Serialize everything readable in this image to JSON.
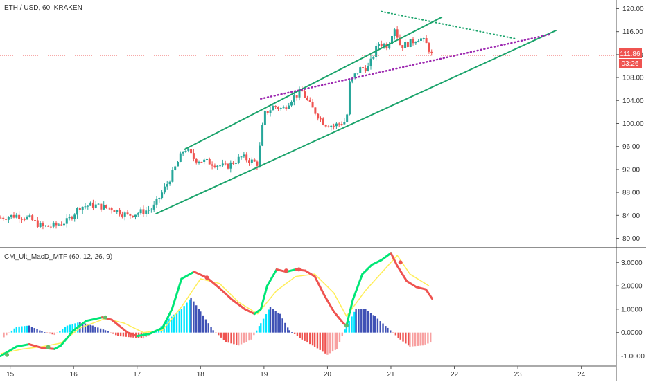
{
  "header": {
    "symbol": "ETH / USD, 60, KRAKEN",
    "indicator": "CM_Ult_MacD_MTF (60, 12, 26, 9)"
  },
  "price_tag": {
    "value": "111.86",
    "countdown": "03:26"
  },
  "colors": {
    "up": "#26a69a",
    "down": "#ef5350",
    "channel": "#1aa36b",
    "support_dotted": "#9c27b0",
    "resistance_dotted": "#1aa36b",
    "macd_up": "#00e676",
    "macd_down": "#ef5350",
    "signal": "#ffee58",
    "hist_pos_strong": "#00e5ff",
    "hist_pos_weak": "#3f51b5",
    "hist_neg_strong": "#ef5350",
    "hist_neg_weak": "#f8a0a0",
    "price_line": "#ef5350",
    "axis": "#555555"
  },
  "chart_data": [
    {
      "type": "candlestick",
      "title": "ETH / USD, 60, KRAKEN",
      "x_ticks": [
        "15",
        "16",
        "17",
        "18",
        "19",
        "20",
        "21",
        "22",
        "23",
        "24"
      ],
      "y_ticks": [
        "80.00",
        "84.00",
        "88.00",
        "92.00",
        "96.00",
        "100.00",
        "104.00",
        "108.00",
        "112.00",
        "116.00",
        "120.00"
      ],
      "ylim": [
        78.5,
        121.5
      ],
      "xlim": [
        14.84,
        24.55
      ],
      "last_price": 111.86,
      "close_path": [
        [
          14.85,
          83.6
        ],
        [
          15.1,
          84.0
        ],
        [
          15.3,
          83.5
        ],
        [
          15.5,
          82.0
        ],
        [
          15.7,
          82.2
        ],
        [
          15.9,
          83.0
        ],
        [
          16.1,
          85.5
        ],
        [
          16.3,
          85.8
        ],
        [
          16.6,
          85.2
        ],
        [
          16.85,
          84.0
        ],
        [
          17.0,
          84.4
        ],
        [
          17.25,
          85.2
        ],
        [
          17.5,
          90.0
        ],
        [
          17.75,
          95.8
        ],
        [
          17.9,
          93.8
        ],
        [
          18.15,
          93.2
        ],
        [
          18.4,
          92.4
        ],
        [
          18.65,
          94.2
        ],
        [
          18.9,
          93.0
        ],
        [
          19.0,
          101.5
        ],
        [
          19.15,
          103.0
        ],
        [
          19.3,
          102.5
        ],
        [
          19.45,
          104.5
        ],
        [
          19.6,
          105.5
        ],
        [
          19.75,
          102.8
        ],
        [
          19.95,
          100.0
        ],
        [
          20.1,
          99.6
        ],
        [
          20.3,
          100.5
        ],
        [
          20.35,
          107.0
        ],
        [
          20.5,
          109.5
        ],
        [
          20.65,
          109.8
        ],
        [
          20.8,
          114.0
        ],
        [
          20.95,
          113.5
        ],
        [
          21.05,
          117.0
        ],
        [
          21.15,
          113.5
        ],
        [
          21.3,
          114.0
        ],
        [
          21.45,
          115.0
        ],
        [
          21.55,
          114.0
        ],
        [
          21.65,
          111.86
        ]
      ],
      "annotations": {
        "channel_upper": [
          [
            17.75,
            95.5
          ],
          [
            21.8,
            118.5
          ]
        ],
        "channel_lower": [
          [
            17.3,
            84.3
          ],
          [
            23.6,
            116.2
          ]
        ],
        "support_dotted": [
          [
            18.95,
            104.3
          ],
          [
            23.5,
            115.5
          ]
        ],
        "resistance_dotted": [
          [
            20.85,
            119.5
          ],
          [
            22.95,
            114.8
          ]
        ]
      }
    },
    {
      "type": "line+bar",
      "title": "CM_Ult_MacD_MTF (60, 12, 26, 9)",
      "y_ticks": [
        "-1.0000",
        "0.0000",
        "1.0000",
        "2.0000",
        "3.0000"
      ],
      "ylim": [
        -1.4,
        3.6
      ],
      "xlim": [
        14.84,
        24.55
      ],
      "series": [
        {
          "name": "MACD",
          "x": [
            14.85,
            15.1,
            15.3,
            15.5,
            15.7,
            15.8,
            16.0,
            16.2,
            16.45,
            16.6,
            16.85,
            17.0,
            17.2,
            17.4,
            17.55,
            17.7,
            17.9,
            18.1,
            18.3,
            18.5,
            18.7,
            18.85,
            18.95,
            19.05,
            19.2,
            19.35,
            19.5,
            19.65,
            19.8,
            19.95,
            20.1,
            20.25,
            20.3,
            20.4,
            20.55,
            20.7,
            20.85,
            21.0,
            21.1,
            21.25,
            21.4,
            21.55,
            21.65
          ],
          "y": [
            -1.0,
            -0.6,
            -0.5,
            -0.65,
            -0.7,
            -0.55,
            0.1,
            0.5,
            0.65,
            0.55,
            0.0,
            -0.15,
            -0.05,
            0.2,
            1.0,
            2.3,
            2.6,
            2.35,
            1.9,
            1.4,
            1.0,
            0.8,
            1.0,
            2.0,
            2.7,
            2.6,
            2.7,
            2.65,
            2.4,
            1.6,
            0.9,
            0.4,
            0.3,
            1.4,
            2.5,
            2.9,
            3.1,
            3.4,
            2.85,
            2.2,
            1.95,
            1.85,
            1.45
          ]
        },
        {
          "name": "Signal",
          "x": [
            14.85,
            15.2,
            15.5,
            15.8,
            16.1,
            16.5,
            16.8,
            17.1,
            17.4,
            17.7,
            18.0,
            18.3,
            18.6,
            18.9,
            19.2,
            19.5,
            19.8,
            20.1,
            20.3,
            20.6,
            20.9,
            21.1,
            21.3,
            21.6
          ],
          "y": [
            -0.9,
            -0.7,
            -0.6,
            -0.45,
            0.2,
            0.6,
            0.4,
            0.0,
            0.1,
            1.1,
            2.3,
            2.1,
            1.3,
            0.8,
            1.8,
            2.4,
            2.5,
            1.7,
            0.7,
            1.8,
            2.7,
            3.3,
            2.5,
            2.0
          ]
        },
        {
          "name": "Histogram",
          "x": [
            14.9,
            15.1,
            15.3,
            15.5,
            15.7,
            15.9,
            16.1,
            16.3,
            16.5,
            16.7,
            16.9,
            17.1,
            17.3,
            17.5,
            17.7,
            17.85,
            18.0,
            18.2,
            18.4,
            18.6,
            18.8,
            18.95,
            19.1,
            19.25,
            19.4,
            19.6,
            19.8,
            20.0,
            20.15,
            20.3,
            20.45,
            20.6,
            20.75,
            20.95,
            21.15,
            21.3,
            21.5,
            21.65
          ],
          "y": [
            -0.2,
            0.25,
            0.3,
            0.05,
            -0.1,
            0.3,
            0.45,
            0.3,
            0.1,
            -0.15,
            -0.2,
            -0.25,
            0.05,
            0.6,
            1.0,
            1.5,
            0.9,
            0.1,
            -0.4,
            -0.55,
            -0.3,
            0.4,
            1.1,
            0.8,
            0.1,
            -0.3,
            -0.6,
            -0.95,
            -0.7,
            0.3,
            1.0,
            1.0,
            0.7,
            0.2,
            -0.3,
            -0.6,
            -0.55,
            -0.4
          ]
        }
      ],
      "cross_markers": [
        [
          15.6,
          -0.62
        ],
        [
          16.5,
          0.65
        ],
        [
          18.1,
          2.35
        ],
        [
          19.35,
          2.65
        ],
        [
          19.55,
          2.7
        ],
        [
          21.15,
          3.0
        ],
        [
          14.95,
          -0.95
        ],
        [
          20.3,
          0.3
        ]
      ]
    }
  ]
}
